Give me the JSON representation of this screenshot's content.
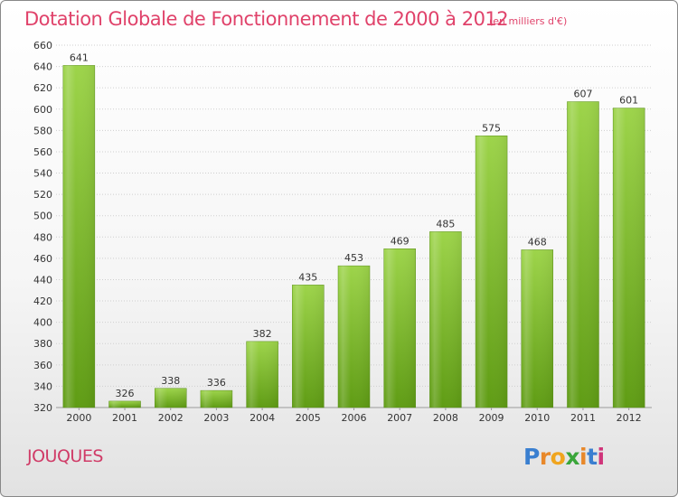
{
  "header": {
    "title": "Dotation Globale de Fonctionnement de 2000 à 2012",
    "subtitle": "(en milliers d'€)"
  },
  "footer": {
    "commune": "JOUQUES",
    "logo": "Proxiti"
  },
  "colors": {
    "title": "#e0426a",
    "bar_light": "#9dd44a",
    "bar_dark": "#5f9c14",
    "grid": "#cccccc",
    "axis_text": "#333333"
  },
  "chart_data": {
    "type": "bar",
    "title": "Dotation Globale de Fonctionnement de 2000 à 2012",
    "subtitle": "(en milliers d'€)",
    "categories": [
      "2000",
      "2001",
      "2002",
      "2003",
      "2004",
      "2005",
      "2006",
      "2007",
      "2008",
      "2009",
      "2010",
      "2011",
      "2012"
    ],
    "values": [
      641,
      326,
      338,
      336,
      382,
      435,
      453,
      469,
      485,
      575,
      468,
      607,
      601
    ],
    "data_labels": [
      "641",
      "326",
      "338",
      "336",
      "382",
      "435",
      "453",
      "469",
      "485",
      "575",
      "468",
      "607",
      "601"
    ],
    "ylim": [
      320,
      660
    ],
    "yticks": [
      "320",
      "340",
      "360",
      "380",
      "400",
      "420",
      "440",
      "460",
      "480",
      "500",
      "520",
      "540",
      "560",
      "580",
      "600",
      "620",
      "640",
      "660"
    ],
    "grid": true,
    "legend": "none",
    "xlabel": "",
    "ylabel": ""
  }
}
